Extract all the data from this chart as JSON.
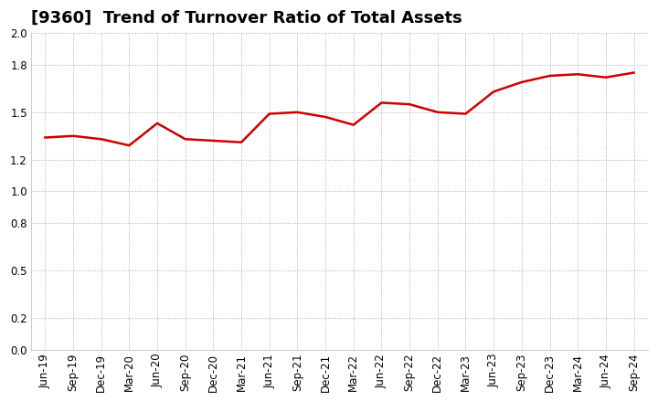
{
  "title": "[9360]  Trend of Turnover Ratio of Total Assets",
  "x_labels": [
    "Jun-19",
    "Sep-19",
    "Dec-19",
    "Mar-20",
    "Jun-20",
    "Sep-20",
    "Dec-20",
    "Mar-21",
    "Jun-21",
    "Sep-21",
    "Dec-21",
    "Mar-22",
    "Jun-22",
    "Sep-22",
    "Dec-22",
    "Mar-23",
    "Jun-23",
    "Sep-23",
    "Dec-23",
    "Mar-24",
    "Jun-24",
    "Sep-24"
  ],
  "y_values": [
    1.34,
    1.35,
    1.33,
    1.29,
    1.43,
    1.33,
    1.32,
    1.31,
    1.49,
    1.5,
    1.47,
    1.42,
    1.56,
    1.55,
    1.5,
    1.49,
    1.63,
    1.69,
    1.73,
    1.74,
    1.72,
    1.75
  ],
  "line_color": "#cc0000",
  "line_width": 1.8,
  "ylim": [
    0.0,
    2.0
  ],
  "yticks": [
    0.0,
    0.2,
    0.5,
    0.8,
    1.0,
    1.2,
    1.5,
    1.8,
    2.0
  ],
  "bg_color": "#ffffff",
  "plot_bg_color": "#ffffff",
  "grid_color": "#aaaaaa",
  "title_fontsize": 13,
  "tick_fontsize": 8.5
}
